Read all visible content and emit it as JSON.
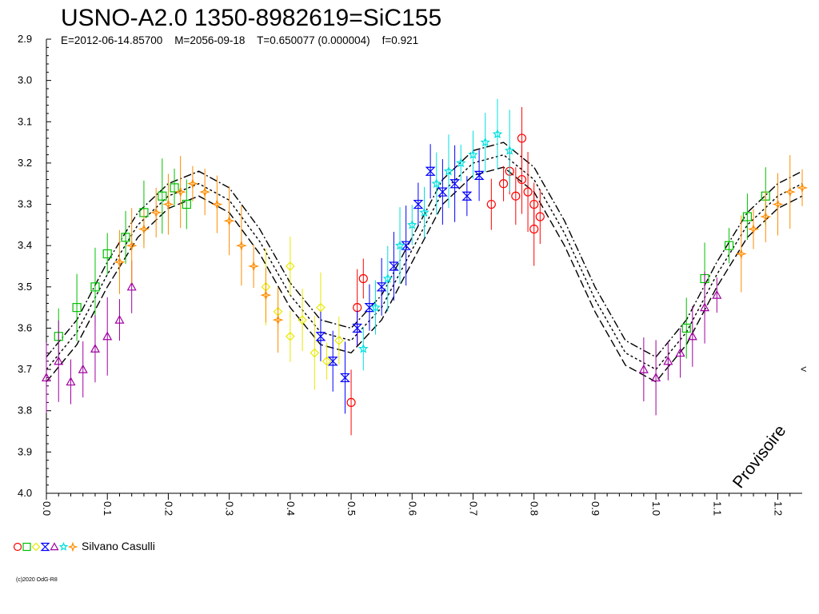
{
  "chart_data": {
    "type": "scatter",
    "title": "USNO-A2.0 1350-8982619=SiC155",
    "subtitle": "E=2012-06-14.85700    M=2056-09-18    T=0.650077 (0.000004)    f=0.921",
    "xlabel": "",
    "ylabel": "",
    "xlim": [
      0.0,
      1.24
    ],
    "ylim": [
      2.9,
      4.0
    ],
    "y_inverted": true,
    "grid": false,
    "x_ticks": [
      "0.0",
      "0.1",
      "0.2",
      "0.3",
      "0.4",
      "0.5",
      "0.6",
      "0.7",
      "0.8",
      "0.9",
      "1.0",
      "1.1",
      "1.2"
    ],
    "y_ticks": [
      "2.9",
      "3.0",
      "3.1",
      "3.2",
      "3.3",
      "3.4",
      "3.5",
      "3.6",
      "3.7",
      "3.8",
      "3.9",
      "4.0"
    ],
    "legend": {
      "placement": "bottom-left",
      "label": "Silvano Casulli"
    },
    "watermark": "Provisoire",
    "copyright": "(c)2020 OdG-R8",
    "series": [
      {
        "name": "",
        "marker": "circle",
        "color": "#ff0000",
        "points": [
          [
            0.75,
            3.25
          ],
          [
            0.76,
            3.22
          ],
          [
            0.77,
            3.28
          ],
          [
            0.78,
            3.24
          ],
          [
            0.79,
            3.27
          ],
          [
            0.8,
            3.3
          ],
          [
            0.81,
            3.33
          ],
          [
            0.5,
            3.78
          ],
          [
            0.51,
            3.55
          ],
          [
            0.52,
            3.48
          ],
          [
            0.73,
            3.3
          ],
          [
            0.78,
            3.14
          ],
          [
            0.8,
            3.36
          ]
        ]
      },
      {
        "name": "",
        "marker": "square",
        "color": "#00c000",
        "points": [
          [
            0.02,
            3.62
          ],
          [
            0.05,
            3.55
          ],
          [
            0.08,
            3.5
          ],
          [
            0.1,
            3.42
          ],
          [
            0.13,
            3.38
          ],
          [
            0.16,
            3.32
          ],
          [
            0.19,
            3.28
          ],
          [
            0.21,
            3.26
          ],
          [
            0.23,
            3.3
          ],
          [
            1.05,
            3.6
          ],
          [
            1.08,
            3.48
          ],
          [
            1.12,
            3.4
          ],
          [
            1.15,
            3.33
          ],
          [
            1.18,
            3.28
          ]
        ]
      },
      {
        "name": "",
        "marker": "diamond",
        "color": "#e8e800",
        "points": [
          [
            0.36,
            3.5
          ],
          [
            0.38,
            3.56
          ],
          [
            0.4,
            3.62
          ],
          [
            0.42,
            3.58
          ],
          [
            0.44,
            3.66
          ],
          [
            0.46,
            3.68
          ],
          [
            0.48,
            3.63
          ],
          [
            0.4,
            3.45
          ],
          [
            0.45,
            3.55
          ]
        ]
      },
      {
        "name": "",
        "marker": "hourglass",
        "color": "#0000ff",
        "points": [
          [
            0.45,
            3.62
          ],
          [
            0.47,
            3.68
          ],
          [
            0.49,
            3.72
          ],
          [
            0.51,
            3.6
          ],
          [
            0.53,
            3.55
          ],
          [
            0.55,
            3.5
          ],
          [
            0.57,
            3.45
          ],
          [
            0.59,
            3.4
          ],
          [
            0.61,
            3.3
          ],
          [
            0.63,
            3.22
          ],
          [
            0.65,
            3.27
          ],
          [
            0.67,
            3.25
          ],
          [
            0.69,
            3.28
          ],
          [
            0.71,
            3.23
          ]
        ]
      },
      {
        "name": "",
        "marker": "triangle",
        "color": "#a000a0",
        "points": [
          [
            0.0,
            3.72
          ],
          [
            0.02,
            3.68
          ],
          [
            0.04,
            3.73
          ],
          [
            0.06,
            3.7
          ],
          [
            0.08,
            3.65
          ],
          [
            0.1,
            3.62
          ],
          [
            0.12,
            3.58
          ],
          [
            0.14,
            3.5
          ],
          [
            0.98,
            3.7
          ],
          [
            1.0,
            3.72
          ],
          [
            1.02,
            3.68
          ],
          [
            1.04,
            3.66
          ],
          [
            1.06,
            3.62
          ],
          [
            1.08,
            3.55
          ],
          [
            1.1,
            3.52
          ]
        ]
      },
      {
        "name": "",
        "marker": "star",
        "color": "#00e0e0",
        "points": [
          [
            0.52,
            3.65
          ],
          [
            0.54,
            3.55
          ],
          [
            0.56,
            3.48
          ],
          [
            0.58,
            3.4
          ],
          [
            0.6,
            3.35
          ],
          [
            0.62,
            3.32
          ],
          [
            0.64,
            3.25
          ],
          [
            0.66,
            3.22
          ],
          [
            0.68,
            3.2
          ],
          [
            0.7,
            3.18
          ],
          [
            0.72,
            3.15
          ],
          [
            0.74,
            3.13
          ],
          [
            0.76,
            3.17
          ]
        ]
      },
      {
        "name": "",
        "marker": "cross",
        "color": "#ff8c00",
        "points": [
          [
            0.12,
            3.44
          ],
          [
            0.14,
            3.4
          ],
          [
            0.16,
            3.36
          ],
          [
            0.18,
            3.32
          ],
          [
            0.2,
            3.3
          ],
          [
            0.22,
            3.27
          ],
          [
            0.24,
            3.25
          ],
          [
            0.26,
            3.27
          ],
          [
            0.28,
            3.3
          ],
          [
            0.3,
            3.34
          ],
          [
            0.32,
            3.4
          ],
          [
            0.34,
            3.45
          ],
          [
            0.36,
            3.52
          ],
          [
            0.38,
            3.58
          ],
          [
            1.14,
            3.42
          ],
          [
            1.16,
            3.36
          ],
          [
            1.18,
            3.33
          ],
          [
            1.2,
            3.3
          ],
          [
            1.22,
            3.27
          ],
          [
            1.24,
            3.26
          ]
        ]
      }
    ],
    "fit_curves": [
      {
        "points": [
          [
            0.0,
            3.73
          ],
          [
            0.05,
            3.64
          ],
          [
            0.1,
            3.5
          ],
          [
            0.15,
            3.38
          ],
          [
            0.2,
            3.31
          ],
          [
            0.25,
            3.28
          ],
          [
            0.3,
            3.32
          ],
          [
            0.35,
            3.42
          ],
          [
            0.4,
            3.55
          ],
          [
            0.45,
            3.64
          ],
          [
            0.5,
            3.66
          ],
          [
            0.55,
            3.58
          ],
          [
            0.6,
            3.44
          ],
          [
            0.65,
            3.3
          ],
          [
            0.7,
            3.23
          ],
          [
            0.75,
            3.21
          ],
          [
            0.8,
            3.27
          ],
          [
            0.85,
            3.4
          ],
          [
            0.9,
            3.56
          ],
          [
            0.95,
            3.69
          ],
          [
            1.0,
            3.73
          ],
          [
            1.05,
            3.64
          ],
          [
            1.1,
            3.5
          ],
          [
            1.15,
            3.38
          ],
          [
            1.2,
            3.31
          ],
          [
            1.24,
            3.28
          ]
        ]
      },
      {
        "points": [
          [
            0.0,
            3.7
          ],
          [
            0.05,
            3.61
          ],
          [
            0.1,
            3.47
          ],
          [
            0.15,
            3.35
          ],
          [
            0.2,
            3.28
          ],
          [
            0.25,
            3.25
          ],
          [
            0.3,
            3.29
          ],
          [
            0.35,
            3.39
          ],
          [
            0.4,
            3.52
          ],
          [
            0.45,
            3.61
          ],
          [
            0.5,
            3.63
          ],
          [
            0.55,
            3.55
          ],
          [
            0.6,
            3.41
          ],
          [
            0.65,
            3.27
          ],
          [
            0.7,
            3.2
          ],
          [
            0.75,
            3.18
          ],
          [
            0.8,
            3.24
          ],
          [
            0.85,
            3.37
          ],
          [
            0.9,
            3.53
          ],
          [
            0.95,
            3.66
          ],
          [
            1.0,
            3.7
          ],
          [
            1.05,
            3.61
          ],
          [
            1.1,
            3.47
          ],
          [
            1.15,
            3.35
          ],
          [
            1.2,
            3.28
          ],
          [
            1.24,
            3.25
          ]
        ]
      },
      {
        "points": [
          [
            0.0,
            3.67
          ],
          [
            0.05,
            3.58
          ],
          [
            0.1,
            3.44
          ],
          [
            0.15,
            3.32
          ],
          [
            0.2,
            3.25
          ],
          [
            0.25,
            3.22
          ],
          [
            0.3,
            3.26
          ],
          [
            0.35,
            3.36
          ],
          [
            0.4,
            3.49
          ],
          [
            0.45,
            3.58
          ],
          [
            0.5,
            3.6
          ],
          [
            0.55,
            3.52
          ],
          [
            0.6,
            3.38
          ],
          [
            0.65,
            3.24
          ],
          [
            0.7,
            3.17
          ],
          [
            0.75,
            3.15
          ],
          [
            0.8,
            3.21
          ],
          [
            0.85,
            3.34
          ],
          [
            0.9,
            3.5
          ],
          [
            0.95,
            3.63
          ],
          [
            1.0,
            3.67
          ],
          [
            1.05,
            3.58
          ],
          [
            1.1,
            3.44
          ],
          [
            1.15,
            3.32
          ],
          [
            1.2,
            3.25
          ],
          [
            1.24,
            3.22
          ]
        ]
      }
    ]
  }
}
